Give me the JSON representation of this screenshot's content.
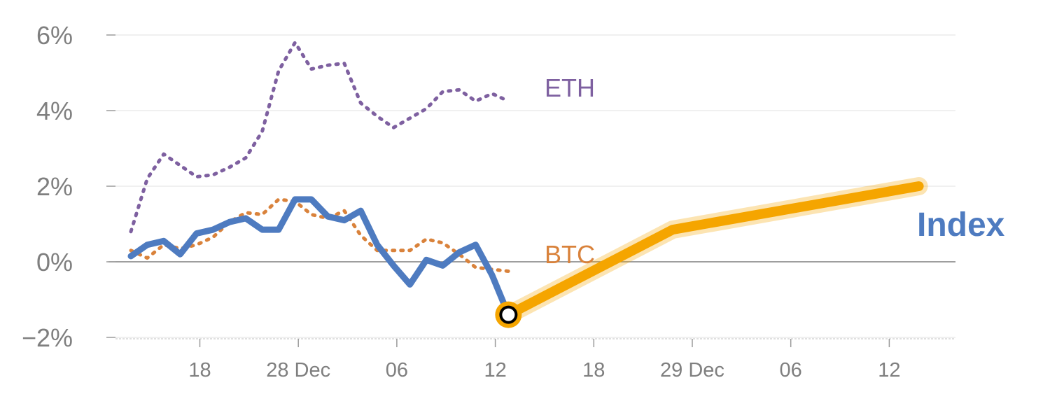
{
  "chart_data": {
    "type": "line",
    "y_axis": {
      "ticks": [
        -2,
        0,
        2,
        4,
        6
      ],
      "tick_labels": [
        "−2%",
        "0%",
        "2%",
        "4%",
        "6%"
      ],
      "ylim": [
        -2,
        6
      ],
      "unit": "%"
    },
    "x_axis": {
      "tick_labels": [
        "18",
        "28 Dec",
        "06",
        "12",
        "18",
        "29 Dec",
        "06",
        "12"
      ]
    },
    "grid": true,
    "zero_line": true,
    "series": [
      {
        "name": "ETH",
        "style": "dotted",
        "color": "#7e60a0",
        "x": [
          0,
          1,
          2,
          3,
          4,
          5,
          6,
          7,
          8,
          9,
          10,
          11,
          12,
          13,
          14,
          15,
          16,
          17,
          18,
          19,
          20,
          21,
          22,
          23
        ],
        "y": [
          0.8,
          2.2,
          2.85,
          2.55,
          2.25,
          2.3,
          2.5,
          2.75,
          3.45,
          5.05,
          5.8,
          5.1,
          5.2,
          5.25,
          4.2,
          3.85,
          3.55,
          3.8,
          4.05,
          4.5,
          4.55,
          4.25,
          4.45,
          4.25
        ]
      },
      {
        "name": "BTC",
        "style": "dotted",
        "color": "#d9823b",
        "x": [
          0,
          1,
          2,
          3,
          4,
          5,
          6,
          7,
          8,
          9,
          10,
          11,
          12,
          13,
          14,
          15,
          16,
          17,
          18,
          19,
          20,
          21,
          22,
          23
        ],
        "y": [
          0.3,
          0.1,
          0.45,
          0.35,
          0.45,
          0.65,
          1.05,
          1.3,
          1.25,
          1.65,
          1.6,
          1.25,
          1.15,
          1.35,
          0.7,
          0.3,
          0.3,
          0.3,
          0.6,
          0.5,
          0.2,
          -0.15,
          -0.2,
          -0.25
        ]
      },
      {
        "name": "Index",
        "style": "solid",
        "color": "#4e7bc0",
        "x": [
          0,
          1,
          2,
          3,
          4,
          5,
          6,
          7,
          8,
          9,
          10,
          11,
          12,
          13,
          14,
          15,
          16,
          17,
          18,
          19,
          20,
          21,
          22,
          23
        ],
        "y": [
          0.15,
          0.45,
          0.55,
          0.2,
          0.75,
          0.85,
          1.05,
          1.15,
          0.85,
          0.85,
          1.65,
          1.65,
          1.2,
          1.1,
          1.35,
          0.45,
          -0.1,
          -0.6,
          0.05,
          -0.1,
          0.25,
          0.45,
          -0.35,
          -1.4
        ]
      }
    ],
    "projection": {
      "color": "#f5a500",
      "x": [
        23,
        33,
        48
      ],
      "y": [
        -1.4,
        0.85,
        2.0
      ]
    },
    "marker": {
      "x": 23,
      "y": -1.4
    },
    "labels": {
      "eth": "ETH",
      "btc": "BTC",
      "index": "Index"
    }
  }
}
